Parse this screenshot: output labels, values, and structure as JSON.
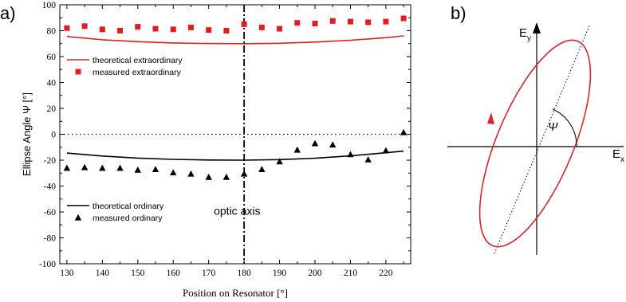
{
  "panel_a_label": "a)",
  "panel_b_label": "b)",
  "optic_axis_label": "optic axis",
  "chart_data": {
    "type": "scatter",
    "xlabel": "Position on Resonator [°]",
    "ylabel": "Ellipse Angle Ψ [°]",
    "xlim": [
      128,
      227
    ],
    "ylim": [
      -100,
      100
    ],
    "xticks": [
      130,
      140,
      150,
      160,
      170,
      180,
      190,
      200,
      210,
      220
    ],
    "yticks": [
      -100,
      -80,
      -60,
      -40,
      -20,
      0,
      20,
      40,
      60,
      80,
      100
    ],
    "grid": false,
    "reference_lines": {
      "horizontal_y": 0,
      "vertical_x": 180
    },
    "legends": [
      {
        "placement": "upper-left",
        "entries": [
          "theoretical extraordinary",
          "measured extraordinary"
        ]
      },
      {
        "placement": "lower-left",
        "entries": [
          "theoretical ordinary",
          "measured ordinary"
        ]
      }
    ],
    "series": [
      {
        "name": "theoretical extraordinary",
        "kind": "line",
        "color": "#e41c1c",
        "x": [
          130,
          140,
          150,
          160,
          170,
          180,
          190,
          200,
          210,
          220,
          225
        ],
        "values": [
          75.5,
          73,
          71.5,
          70.5,
          70.1,
          70,
          70.3,
          71.2,
          72.6,
          74.6,
          76
        ]
      },
      {
        "name": "measured extraordinary",
        "kind": "marker",
        "marker": "square",
        "color": "#e41c1c",
        "x": [
          130,
          135,
          140,
          145,
          150,
          155,
          160,
          165,
          170,
          175,
          180,
          185,
          190,
          195,
          200,
          205,
          210,
          215,
          220,
          225
        ],
        "values": [
          82,
          83.5,
          81,
          80,
          83,
          81.5,
          81,
          82.5,
          80.5,
          80,
          85,
          82.5,
          81.5,
          86,
          85.5,
          87.5,
          87,
          86.5,
          87,
          89.5
        ]
      },
      {
        "name": "theoretical ordinary",
        "kind": "line",
        "color": "#000000",
        "x": [
          130,
          140,
          150,
          160,
          170,
          180,
          190,
          200,
          210,
          220,
          225
        ],
        "values": [
          -14.5,
          -16.8,
          -18.4,
          -19.4,
          -19.9,
          -20,
          -19.6,
          -18.5,
          -16.7,
          -14.3,
          -13
        ]
      },
      {
        "name": "measured ordinary",
        "kind": "marker",
        "marker": "triangle",
        "color": "#000000",
        "x": [
          130,
          135,
          140,
          145,
          150,
          155,
          160,
          165,
          170,
          175,
          180,
          185,
          190,
          195,
          200,
          205,
          210,
          215,
          220,
          225
        ],
        "values": [
          -26,
          -25.5,
          -26,
          -26,
          -27.5,
          -27,
          -29.5,
          -30.5,
          -33,
          -33,
          -30.5,
          -27,
          -21,
          -12,
          -7,
          -8,
          -15.5,
          -19.5,
          -12.5,
          1.5
        ]
      }
    ]
  },
  "diagram": {
    "ex_label": "E",
    "ex_sub": "x",
    "ey_label": "E",
    "ey_sub": "y",
    "psi_label": "Ψ",
    "ellipse_color": "#d8262e"
  }
}
